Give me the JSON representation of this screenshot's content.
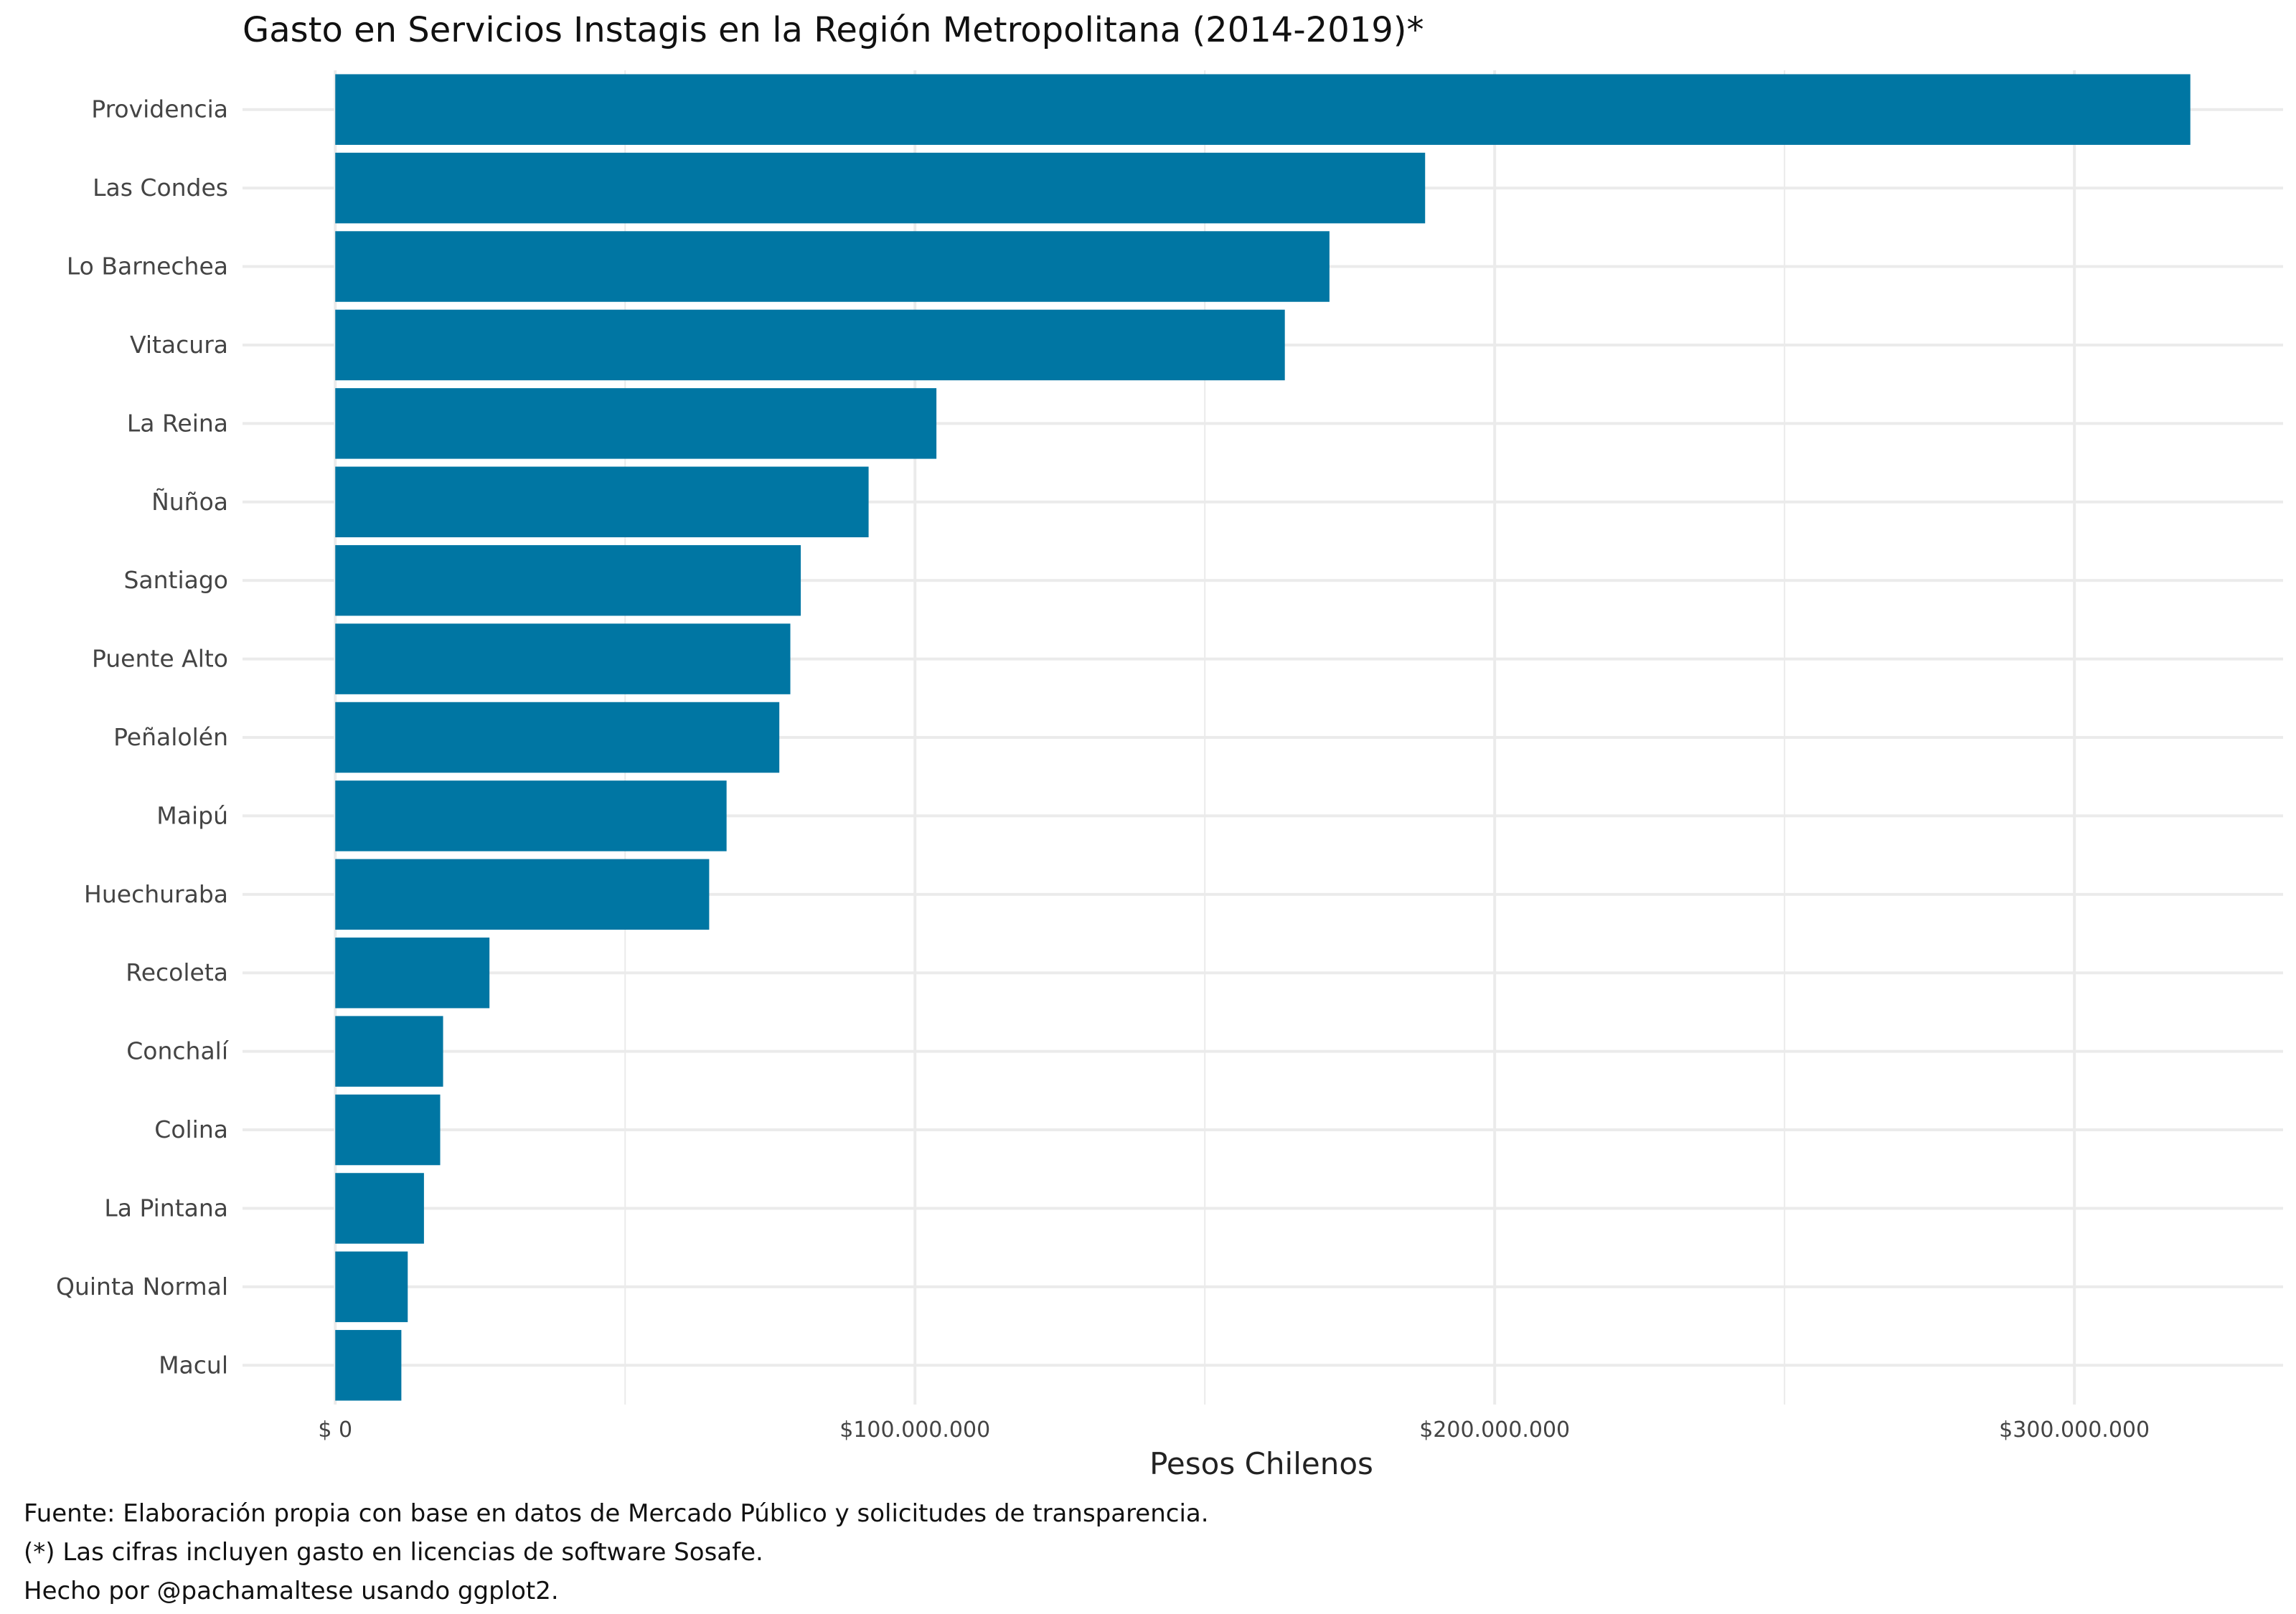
{
  "chart_data": {
    "type": "bar",
    "orientation": "horizontal",
    "title": "Gasto en Servicios Instagis en la Región Metropolitana (2014-2019)*",
    "xlabel": "Pesos Chilenos",
    "ylabel": "",
    "categories": [
      "Providencia",
      "Las Condes",
      "Lo Barnechea",
      "Vitacura",
      "La Reina",
      "Ñuñoa",
      "Santiago",
      "Puente Alto",
      "Peñalolén",
      "Maipú",
      "Huechuraba",
      "Recoleta",
      "Conchalí",
      "Colina",
      "La Pintana",
      "Quinta Normal",
      "Macul"
    ],
    "values": [
      320000000,
      188000000,
      171500000,
      163800000,
      103700000,
      92000000,
      80300000,
      78500000,
      76600000,
      67500000,
      64500000,
      26600000,
      18600000,
      18100000,
      15300000,
      12500000,
      11400000
    ],
    "xlim": [
      -16000000,
      336000000
    ],
    "x_ticks": [
      0,
      100000000,
      200000000,
      300000000
    ],
    "x_tick_labels": [
      "$ 0",
      "$100.000.000",
      "$200.000.000",
      "$300.000.000"
    ],
    "grid": true,
    "colors": {
      "bar": "#0076A3",
      "grid": "#EBEBEB"
    }
  },
  "captions": [
    "Fuente: Elaboración propia con base en datos de Mercado Público y solicitudes de transparencia.",
    "(*) Las cifras incluyen gasto en licencias de software Sosafe.",
    "Hecho por @pachamaltese usando ggplot2."
  ]
}
